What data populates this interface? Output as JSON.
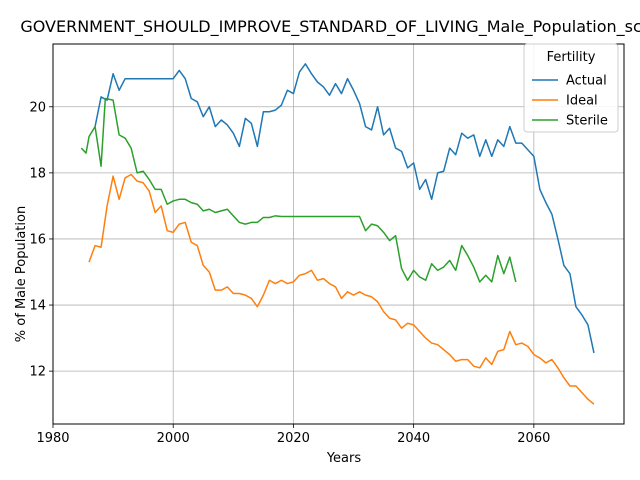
{
  "chart_data": {
    "type": "line",
    "title": "GOVERNMENT_SHOULD_IMPROVE_STANDARD_OF_LIVING_Male_Population_score",
    "xlabel": "Years",
    "ylabel": "% of Male Population",
    "xlim": [
      1980,
      2075
    ],
    "ylim": [
      10.4,
      21.9
    ],
    "xticks": [
      1980,
      2000,
      2020,
      2040,
      2060
    ],
    "yticks": [
      12,
      14,
      16,
      18,
      20
    ],
    "grid": true,
    "legend": {
      "title": "Fertility",
      "placement": "top-right"
    },
    "series": [
      {
        "name": "Actual",
        "color": "#1f77b4",
        "points": [
          [
            1987,
            19.4
          ],
          [
            1988,
            20.3
          ],
          [
            1989,
            20.2
          ],
          [
            1990,
            21.0
          ],
          [
            1991,
            20.5
          ],
          [
            1992,
            20.85
          ],
          [
            1993,
            20.85
          ],
          [
            1994,
            20.85
          ],
          [
            1995,
            20.85
          ],
          [
            1996,
            20.85
          ],
          [
            1997,
            20.85
          ],
          [
            1998,
            20.85
          ],
          [
            1999,
            20.85
          ],
          [
            2000,
            20.85
          ],
          [
            2001,
            21.1
          ],
          [
            2002,
            20.85
          ],
          [
            2003,
            20.25
          ],
          [
            2004,
            20.15
          ],
          [
            2005,
            19.7
          ],
          [
            2006,
            20.0
          ],
          [
            2007,
            19.4
          ],
          [
            2008,
            19.6
          ],
          [
            2009,
            19.45
          ],
          [
            2010,
            19.2
          ],
          [
            2011,
            18.8
          ],
          [
            2012,
            19.65
          ],
          [
            2013,
            19.5
          ],
          [
            2014,
            18.8
          ],
          [
            2015,
            19.85
          ],
          [
            2016,
            19.85
          ],
          [
            2017,
            19.9
          ],
          [
            2018,
            20.05
          ],
          [
            2019,
            20.5
          ],
          [
            2020,
            20.4
          ],
          [
            2021,
            21.05
          ],
          [
            2022,
            21.3
          ],
          [
            2023,
            21.0
          ],
          [
            2024,
            20.75
          ],
          [
            2025,
            20.6
          ],
          [
            2026,
            20.35
          ],
          [
            2027,
            20.7
          ],
          [
            2028,
            20.4
          ],
          [
            2029,
            20.85
          ],
          [
            2030,
            20.5
          ],
          [
            2031,
            20.1
          ],
          [
            2032,
            19.4
          ],
          [
            2033,
            19.3
          ],
          [
            2034,
            20.0
          ],
          [
            2035,
            19.15
          ],
          [
            2036,
            19.35
          ],
          [
            2037,
            18.75
          ],
          [
            2038,
            18.65
          ],
          [
            2039,
            18.15
          ],
          [
            2040,
            18.3
          ],
          [
            2041,
            17.5
          ],
          [
            2042,
            17.8
          ],
          [
            2043,
            17.2
          ],
          [
            2044,
            18.0
          ],
          [
            2045,
            18.05
          ],
          [
            2046,
            18.75
          ],
          [
            2047,
            18.55
          ],
          [
            2048,
            19.2
          ],
          [
            2049,
            19.05
          ],
          [
            2050,
            19.15
          ],
          [
            2051,
            18.5
          ],
          [
            2052,
            19.0
          ],
          [
            2053,
            18.5
          ],
          [
            2054,
            19.0
          ],
          [
            2055,
            18.8
          ],
          [
            2056,
            19.4
          ],
          [
            2057,
            18.9
          ],
          [
            2058,
            18.9
          ],
          [
            2059,
            18.7
          ],
          [
            2060,
            18.5
          ],
          [
            2061,
            17.5
          ],
          [
            2062,
            17.1
          ],
          [
            2063,
            16.75
          ],
          [
            2064,
            16.0
          ],
          [
            2065,
            15.2
          ],
          [
            2066,
            14.95
          ],
          [
            2067,
            13.95
          ],
          [
            2068,
            13.7
          ],
          [
            2069,
            13.4
          ],
          [
            2070,
            12.55
          ]
        ]
      },
      {
        "name": "Ideal",
        "color": "#ff7f0e",
        "points": [
          [
            1986,
            15.3
          ],
          [
            1987,
            15.8
          ],
          [
            1988,
            15.75
          ],
          [
            1989,
            17.0
          ],
          [
            1990,
            17.9
          ],
          [
            1991,
            17.2
          ],
          [
            1992,
            17.85
          ],
          [
            1993,
            17.95
          ],
          [
            1994,
            17.75
          ],
          [
            1995,
            17.7
          ],
          [
            1996,
            17.45
          ],
          [
            1997,
            16.8
          ],
          [
            1998,
            17.0
          ],
          [
            1999,
            16.25
          ],
          [
            2000,
            16.2
          ],
          [
            2001,
            16.45
          ],
          [
            2002,
            16.5
          ],
          [
            2003,
            15.9
          ],
          [
            2004,
            15.8
          ],
          [
            2005,
            15.2
          ],
          [
            2006,
            15.0
          ],
          [
            2007,
            14.45
          ],
          [
            2008,
            14.45
          ],
          [
            2009,
            14.55
          ],
          [
            2010,
            14.35
          ],
          [
            2011,
            14.35
          ],
          [
            2012,
            14.3
          ],
          [
            2013,
            14.2
          ],
          [
            2014,
            13.95
          ],
          [
            2015,
            14.3
          ],
          [
            2016,
            14.75
          ],
          [
            2017,
            14.65
          ],
          [
            2018,
            14.75
          ],
          [
            2019,
            14.65
          ],
          [
            2020,
            14.7
          ],
          [
            2021,
            14.9
          ],
          [
            2022,
            14.95
          ],
          [
            2023,
            15.05
          ],
          [
            2024,
            14.75
          ],
          [
            2025,
            14.8
          ],
          [
            2026,
            14.65
          ],
          [
            2027,
            14.55
          ],
          [
            2028,
            14.2
          ],
          [
            2029,
            14.4
          ],
          [
            2030,
            14.3
          ],
          [
            2031,
            14.4
          ],
          [
            2032,
            14.3
          ],
          [
            2033,
            14.25
          ],
          [
            2034,
            14.1
          ],
          [
            2035,
            13.8
          ],
          [
            2036,
            13.6
          ],
          [
            2037,
            13.55
          ],
          [
            2038,
            13.3
          ],
          [
            2039,
            13.45
          ],
          [
            2040,
            13.4
          ],
          [
            2041,
            13.2
          ],
          [
            2042,
            13.0
          ],
          [
            2043,
            12.85
          ],
          [
            2044,
            12.8
          ],
          [
            2045,
            12.65
          ],
          [
            2046,
            12.5
          ],
          [
            2047,
            12.3
          ],
          [
            2048,
            12.35
          ],
          [
            2049,
            12.35
          ],
          [
            2050,
            12.15
          ],
          [
            2051,
            12.1
          ],
          [
            2052,
            12.4
          ],
          [
            2053,
            12.2
          ],
          [
            2054,
            12.6
          ],
          [
            2055,
            12.65
          ],
          [
            2056,
            13.2
          ],
          [
            2057,
            12.8
          ],
          [
            2058,
            12.85
          ],
          [
            2059,
            12.75
          ],
          [
            2060,
            12.5
          ],
          [
            2061,
            12.4
          ],
          [
            2062,
            12.25
          ],
          [
            2063,
            12.35
          ],
          [
            2064,
            12.1
          ],
          [
            2065,
            11.8
          ],
          [
            2066,
            11.55
          ],
          [
            2067,
            11.55
          ],
          [
            2068,
            11.35
          ],
          [
            2069,
            11.15
          ],
          [
            2070,
            11.0
          ]
        ]
      },
      {
        "name": "Sterile",
        "color": "#2ca02c",
        "points": [
          [
            1984.7,
            18.75
          ],
          [
            1985.5,
            18.6
          ],
          [
            1986,
            19.1
          ],
          [
            1987,
            19.4
          ],
          [
            1988,
            18.2
          ],
          [
            1988.7,
            20.25
          ],
          [
            1990,
            20.2
          ],
          [
            1991,
            19.15
          ],
          [
            1992,
            19.05
          ],
          [
            1993,
            18.75
          ],
          [
            1994,
            18.0
          ],
          [
            1995,
            18.05
          ],
          [
            1996,
            17.8
          ],
          [
            1997,
            17.5
          ],
          [
            1998,
            17.5
          ],
          [
            1999,
            17.05
          ],
          [
            2000,
            17.15
          ],
          [
            2001,
            17.2
          ],
          [
            2002,
            17.2
          ],
          [
            2003,
            17.1
          ],
          [
            2004,
            17.05
          ],
          [
            2005,
            16.85
          ],
          [
            2006,
            16.9
          ],
          [
            2007,
            16.8
          ],
          [
            2008,
            16.85
          ],
          [
            2009,
            16.9
          ],
          [
            2010,
            16.7
          ],
          [
            2011,
            16.5
          ],
          [
            2012,
            16.45
          ],
          [
            2013,
            16.5
          ],
          [
            2014,
            16.5
          ],
          [
            2015,
            16.65
          ],
          [
            2016,
            16.65
          ],
          [
            2017,
            16.7
          ],
          [
            2018,
            16.68
          ],
          [
            2019,
            16.68
          ],
          [
            2020,
            16.68
          ],
          [
            2021,
            16.68
          ],
          [
            2022,
            16.68
          ],
          [
            2023,
            16.68
          ],
          [
            2024,
            16.68
          ],
          [
            2025,
            16.68
          ],
          [
            2026,
            16.68
          ],
          [
            2027,
            16.68
          ],
          [
            2028,
            16.68
          ],
          [
            2029,
            16.68
          ],
          [
            2030,
            16.68
          ],
          [
            2031,
            16.68
          ],
          [
            2032,
            16.25
          ],
          [
            2033,
            16.45
          ],
          [
            2034,
            16.4
          ],
          [
            2035,
            16.2
          ],
          [
            2036,
            15.95
          ],
          [
            2037,
            16.1
          ],
          [
            2038,
            15.1
          ],
          [
            2039,
            14.75
          ],
          [
            2040,
            15.05
          ],
          [
            2041,
            14.85
          ],
          [
            2042,
            14.75
          ],
          [
            2043,
            15.25
          ],
          [
            2044,
            15.05
          ],
          [
            2045,
            15.15
          ],
          [
            2046,
            15.35
          ],
          [
            2047,
            15.05
          ],
          [
            2048,
            15.8
          ],
          [
            2049,
            15.5
          ],
          [
            2050,
            15.15
          ],
          [
            2051,
            14.7
          ],
          [
            2052,
            14.9
          ],
          [
            2053,
            14.7
          ],
          [
            2054,
            15.5
          ],
          [
            2055,
            14.95
          ],
          [
            2056,
            15.45
          ],
          [
            2057,
            14.7
          ]
        ]
      }
    ]
  }
}
